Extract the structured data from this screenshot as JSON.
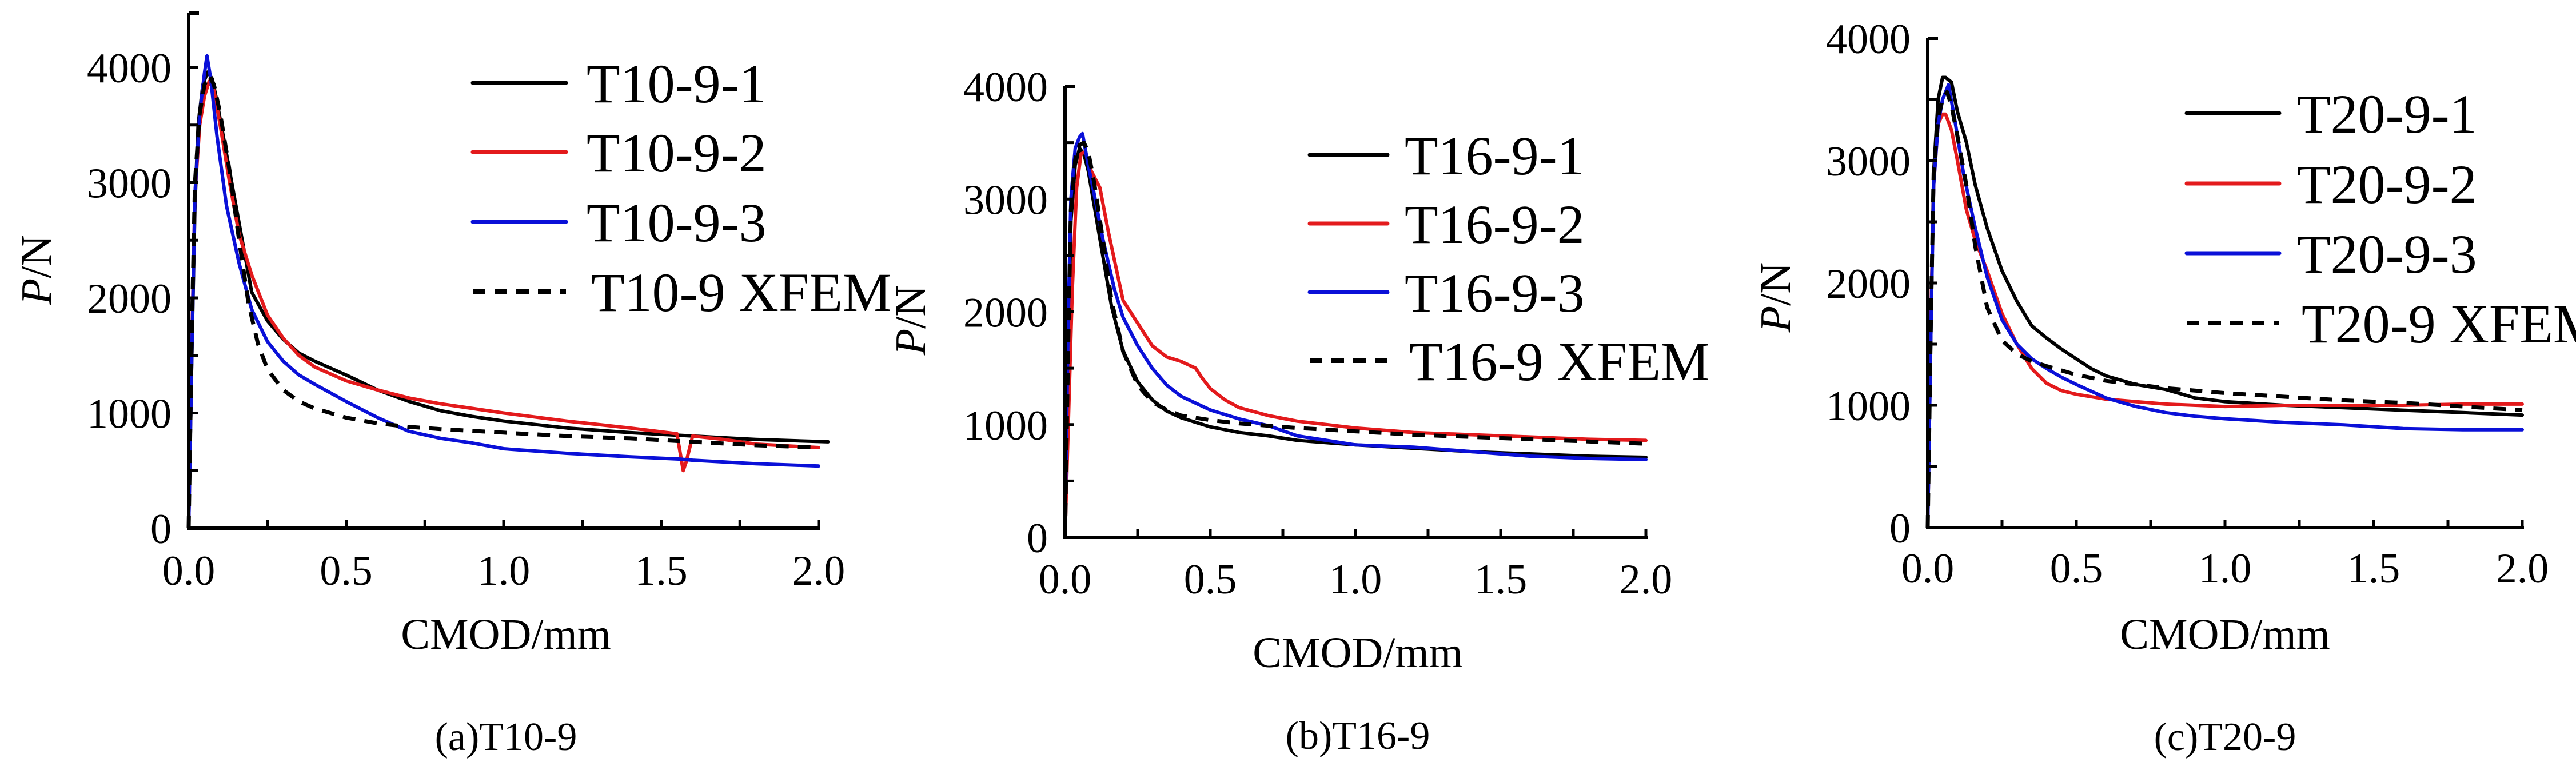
{
  "chart_data": [
    {
      "type": "line",
      "panel": "a",
      "caption": "(a)T10-9",
      "xlabel": "CMOD/mm",
      "ylabel_italic": "P",
      "ylabel_rest": "/N",
      "xlim": [
        0,
        2.0
      ],
      "ylim": [
        0,
        4500
      ],
      "xticks": [
        0.0,
        0.5,
        1.0,
        1.5,
        2.0
      ],
      "xtick_labels": [
        "0.0",
        "0.5",
        "1.0",
        "1.5",
        "2.0"
      ],
      "xminor_step": 0.25,
      "yticks": [
        0,
        1000,
        2000,
        3000,
        4000
      ],
      "ytick_labels": [
        "0",
        "1000",
        "2000",
        "3000",
        "4000"
      ],
      "yminor_step": 500,
      "legend_position": "top-right",
      "series": [
        {
          "name": "T10-9-1",
          "color": "#000000",
          "dashed": false,
          "x": [
            0,
            0.01,
            0.02,
            0.03,
            0.045,
            0.06,
            0.075,
            0.09,
            0.12,
            0.16,
            0.2,
            0.25,
            0.3,
            0.35,
            0.4,
            0.5,
            0.6,
            0.7,
            0.8,
            0.9,
            1.0,
            1.2,
            1.4,
            1.6,
            1.8,
            2.03
          ],
          "y": [
            0,
            1500,
            2800,
            3500,
            3850,
            3960,
            3900,
            3700,
            3250,
            2650,
            2050,
            1800,
            1640,
            1520,
            1450,
            1330,
            1200,
            1100,
            1020,
            970,
            930,
            870,
            830,
            800,
            770,
            750
          ]
        },
        {
          "name": "T10-9-2",
          "color": "#e31a1c",
          "dashed": false,
          "x": [
            0,
            0.01,
            0.02,
            0.035,
            0.05,
            0.065,
            0.08,
            0.1,
            0.13,
            0.16,
            0.2,
            0.25,
            0.3,
            0.35,
            0.4,
            0.5,
            0.6,
            0.7,
            0.8,
            1.0,
            1.2,
            1.4,
            1.55,
            1.57,
            1.58,
            1.6,
            1.7,
            1.8,
            2.0
          ],
          "y": [
            0,
            1600,
            2900,
            3500,
            3750,
            3880,
            3800,
            3500,
            3000,
            2550,
            2200,
            1850,
            1650,
            1500,
            1400,
            1280,
            1200,
            1130,
            1080,
            1000,
            930,
            870,
            820,
            500,
            580,
            800,
            770,
            730,
            700
          ]
        },
        {
          "name": "T10-9-3",
          "color": "#0a10d8",
          "dashed": false,
          "x": [
            0,
            0.01,
            0.02,
            0.035,
            0.05,
            0.058,
            0.07,
            0.09,
            0.12,
            0.16,
            0.2,
            0.25,
            0.3,
            0.35,
            0.4,
            0.5,
            0.6,
            0.7,
            0.8,
            0.9,
            1.0,
            1.2,
            1.4,
            1.56,
            1.6,
            1.8,
            2.0
          ],
          "y": [
            0,
            1500,
            2900,
            3600,
            3950,
            4100,
            3900,
            3400,
            2800,
            2300,
            1900,
            1620,
            1450,
            1330,
            1250,
            1100,
            960,
            840,
            780,
            740,
            690,
            650,
            620,
            600,
            590,
            560,
            540
          ]
        },
        {
          "name": "T10-9 XFEM",
          "color": "#000000",
          "dashed": true,
          "x": [
            0,
            0.01,
            0.02,
            0.035,
            0.05,
            0.065,
            0.08,
            0.1,
            0.13,
            0.16,
            0.19,
            0.22,
            0.25,
            0.3,
            0.35,
            0.4,
            0.5,
            0.6,
            0.7,
            0.8,
            1.0,
            1.2,
            1.4,
            1.6,
            1.8,
            2.0
          ],
          "y": [
            0,
            1700,
            3000,
            3600,
            3850,
            3930,
            3850,
            3600,
            3100,
            2500,
            1950,
            1600,
            1380,
            1200,
            1100,
            1040,
            960,
            910,
            880,
            860,
            830,
            800,
            780,
            750,
            720,
            700
          ]
        }
      ]
    },
    {
      "type": "line",
      "panel": "b",
      "caption": "(b)T16-9",
      "xlabel": "CMOD/mm",
      "ylabel_italic": "P",
      "ylabel_rest": "/N",
      "xlim": [
        0,
        2.0
      ],
      "ylim": [
        0,
        4000
      ],
      "xticks": [
        0.0,
        0.5,
        1.0,
        1.5,
        2.0
      ],
      "xtick_labels": [
        "0.0",
        "0.5",
        "1.0",
        "1.5",
        "2.0"
      ],
      "xminor_step": 0.25,
      "yticks": [
        0,
        1000,
        2000,
        3000,
        4000
      ],
      "ytick_labels": [
        "0",
        "1000",
        "2000",
        "3000",
        "4000"
      ],
      "yminor_step": 500,
      "legend_position": "top-right",
      "series": [
        {
          "name": "T16-9-1",
          "color": "#000000",
          "dashed": false,
          "x": [
            0,
            0.01,
            0.02,
            0.035,
            0.05,
            0.065,
            0.08,
            0.1,
            0.13,
            0.16,
            0.2,
            0.25,
            0.3,
            0.35,
            0.4,
            0.5,
            0.6,
            0.7,
            0.8,
            1.0,
            1.2,
            1.4,
            1.6,
            1.8,
            2.0
          ],
          "y": [
            0,
            1500,
            2800,
            3300,
            3450,
            3400,
            3250,
            2950,
            2500,
            2050,
            1650,
            1380,
            1220,
            1120,
            1060,
            980,
            930,
            900,
            860,
            820,
            790,
            760,
            740,
            720,
            710
          ]
        },
        {
          "name": "T16-9-2",
          "color": "#e31a1c",
          "dashed": false,
          "x": [
            0,
            0.01,
            0.025,
            0.04,
            0.055,
            0.07,
            0.09,
            0.12,
            0.15,
            0.2,
            0.25,
            0.3,
            0.35,
            0.4,
            0.45,
            0.47,
            0.5,
            0.55,
            0.6,
            0.7,
            0.8,
            1.0,
            1.2,
            1.4,
            1.6,
            1.8,
            2.0
          ],
          "y": [
            0,
            900,
            2200,
            3100,
            3400,
            3420,
            3250,
            3100,
            2700,
            2100,
            1900,
            1700,
            1600,
            1560,
            1500,
            1420,
            1320,
            1220,
            1150,
            1080,
            1030,
            970,
            930,
            910,
            890,
            870,
            860
          ]
        },
        {
          "name": "T16-9-3",
          "color": "#0a10d8",
          "dashed": false,
          "x": [
            0,
            0.01,
            0.02,
            0.035,
            0.05,
            0.06,
            0.08,
            0.1,
            0.13,
            0.17,
            0.2,
            0.25,
            0.3,
            0.35,
            0.4,
            0.5,
            0.6,
            0.7,
            0.8,
            0.9,
            1.0,
            1.2,
            1.4,
            1.6,
            1.8,
            2.0
          ],
          "y": [
            0,
            1800,
            3000,
            3450,
            3550,
            3580,
            3300,
            3050,
            2650,
            2200,
            1950,
            1700,
            1500,
            1350,
            1250,
            1130,
            1050,
            990,
            900,
            860,
            820,
            800,
            760,
            720,
            700,
            690
          ]
        },
        {
          "name": "T16-9 XFEM",
          "color": "#000000",
          "dashed": true,
          "x": [
            0,
            0.01,
            0.02,
            0.035,
            0.05,
            0.065,
            0.08,
            0.1,
            0.13,
            0.16,
            0.2,
            0.25,
            0.3,
            0.35,
            0.4,
            0.5,
            0.6,
            0.7,
            0.8,
            1.0,
            1.2,
            1.4,
            1.6,
            1.8,
            2.0
          ],
          "y": [
            0,
            1600,
            2900,
            3350,
            3480,
            3500,
            3420,
            3150,
            2650,
            2100,
            1650,
            1350,
            1200,
            1130,
            1080,
            1040,
            1010,
            990,
            970,
            940,
            910,
            890,
            870,
            850,
            830
          ]
        }
      ]
    },
    {
      "type": "line",
      "panel": "c",
      "caption": "(c)T20-9",
      "xlabel": "CMOD/mm",
      "ylabel_italic": "P",
      "ylabel_rest": "/N",
      "xlim": [
        0,
        2.0
      ],
      "ylim": [
        0,
        4000
      ],
      "xticks": [
        0.0,
        0.5,
        1.0,
        1.5,
        2.0
      ],
      "xtick_labels": [
        "0.0",
        "0.5",
        "1.0",
        "1.5",
        "2.0"
      ],
      "xminor_step": 0.25,
      "yticks": [
        0,
        1000,
        2000,
        3000,
        4000
      ],
      "ytick_labels": [
        "0",
        "1000",
        "2000",
        "3000",
        "4000"
      ],
      "yminor_step": 500,
      "legend_position": "top-right",
      "series": [
        {
          "name": "T20-9-1",
          "color": "#000000",
          "dashed": false,
          "x": [
            0,
            0.01,
            0.02,
            0.035,
            0.05,
            0.06,
            0.08,
            0.1,
            0.13,
            0.16,
            0.2,
            0.25,
            0.3,
            0.35,
            0.4,
            0.45,
            0.5,
            0.55,
            0.6,
            0.7,
            0.8,
            0.9,
            1.0,
            1.2,
            1.4,
            1.6,
            1.8,
            2.0
          ],
          "y": [
            0,
            1500,
            2900,
            3500,
            3680,
            3680,
            3640,
            3400,
            3150,
            2800,
            2450,
            2100,
            1850,
            1650,
            1550,
            1460,
            1380,
            1300,
            1240,
            1170,
            1130,
            1060,
            1030,
            1000,
            980,
            960,
            940,
            920
          ]
        },
        {
          "name": "T20-9-2",
          "color": "#e31a1c",
          "dashed": false,
          "x": [
            0,
            0.01,
            0.02,
            0.035,
            0.05,
            0.06,
            0.08,
            0.1,
            0.13,
            0.16,
            0.2,
            0.25,
            0.3,
            0.35,
            0.4,
            0.45,
            0.5,
            0.6,
            0.7,
            0.8,
            1.0,
            1.2,
            1.4,
            1.6,
            1.8,
            2.0
          ],
          "y": [
            0,
            1600,
            2800,
            3300,
            3380,
            3380,
            3250,
            3000,
            2600,
            2350,
            2100,
            1750,
            1500,
            1300,
            1180,
            1120,
            1090,
            1050,
            1030,
            1010,
            990,
            1000,
            1000,
            1000,
            1010,
            1010
          ]
        },
        {
          "name": "T20-9-3",
          "color": "#0a10d8",
          "dashed": false,
          "x": [
            0,
            0.01,
            0.02,
            0.035,
            0.05,
            0.07,
            0.09,
            0.12,
            0.16,
            0.2,
            0.25,
            0.3,
            0.35,
            0.4,
            0.45,
            0.5,
            0.6,
            0.7,
            0.8,
            0.9,
            1.0,
            1.2,
            1.4,
            1.6,
            1.8,
            2.0
          ],
          "y": [
            0,
            1500,
            2800,
            3300,
            3500,
            3620,
            3350,
            2900,
            2450,
            2050,
            1700,
            1500,
            1380,
            1300,
            1230,
            1170,
            1060,
            990,
            940,
            910,
            890,
            860,
            840,
            810,
            800,
            800
          ]
        },
        {
          "name": "T20-9 XFEM",
          "color": "#000000",
          "dashed": true,
          "x": [
            0,
            0.01,
            0.02,
            0.035,
            0.05,
            0.065,
            0.08,
            0.1,
            0.13,
            0.16,
            0.2,
            0.25,
            0.3,
            0.35,
            0.4,
            0.5,
            0.6,
            0.7,
            0.8,
            1.0,
            1.2,
            1.4,
            1.6,
            1.8,
            2.0
          ],
          "y": [
            0,
            1600,
            2900,
            3350,
            3500,
            3560,
            3450,
            3200,
            2800,
            2300,
            1800,
            1530,
            1420,
            1360,
            1320,
            1250,
            1200,
            1170,
            1140,
            1100,
            1070,
            1040,
            1020,
            990,
            960
          ]
        }
      ]
    }
  ]
}
